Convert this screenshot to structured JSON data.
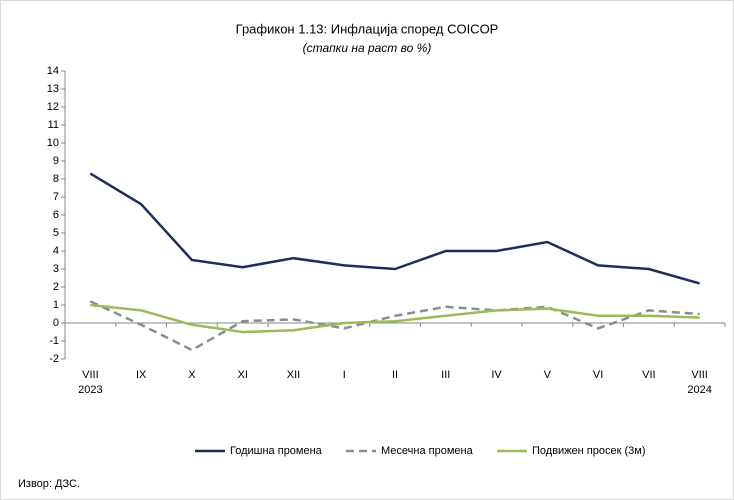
{
  "chart_data": {
    "type": "line",
    "title": "Графикон 1.13: Инфлација според COICOP",
    "subtitle": "(стапки на раст во %)",
    "source": "Извор: ДЗС.",
    "categories": [
      "VIII 2023",
      "IX",
      "X",
      "XI",
      "XII",
      "I",
      "II",
      "III",
      "IV",
      "V",
      "VI",
      "VII",
      "VIII 2024"
    ],
    "series": [
      {
        "name": "Годишна промена",
        "color": "#1f2d5c",
        "dash": false,
        "values": [
          8.3,
          6.6,
          3.5,
          3.1,
          3.6,
          3.2,
          3.0,
          4.0,
          4.0,
          4.5,
          3.2,
          3.0,
          2.2
        ]
      },
      {
        "name": "Месечна промена",
        "color": "#8c8c8c",
        "dash": true,
        "values": [
          1.2,
          -0.1,
          -1.5,
          0.1,
          0.2,
          -0.3,
          0.4,
          0.9,
          0.7,
          0.9,
          -0.3,
          0.7,
          0.5
        ]
      },
      {
        "name": "Подвижен просек (3м)",
        "color": "#9bbb59",
        "dash": false,
        "values": [
          1.0,
          0.7,
          -0.1,
          -0.5,
          -0.4,
          0.0,
          0.1,
          0.4,
          0.7,
          0.8,
          0.4,
          0.4,
          0.3
        ]
      }
    ],
    "ylim": [
      -2,
      14
    ],
    "yticks": [
      -2,
      -1,
      0,
      1,
      2,
      3,
      4,
      5,
      6,
      7,
      8,
      9,
      10,
      11,
      12,
      13,
      14
    ],
    "grid": false,
    "legend": "bottom"
  }
}
